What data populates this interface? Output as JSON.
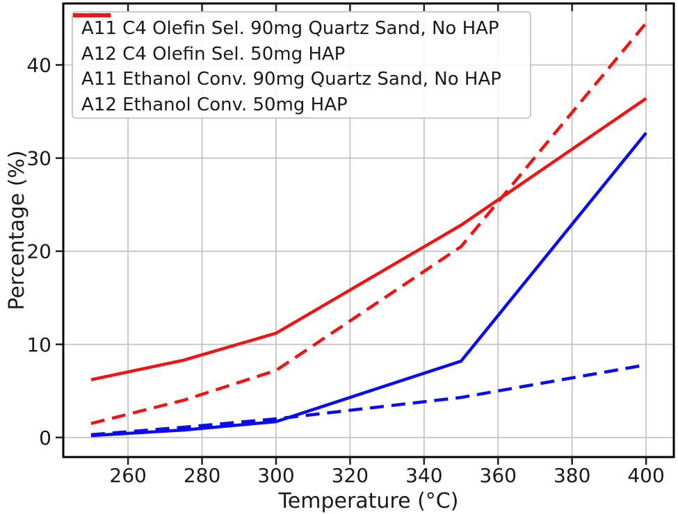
{
  "chart_data": {
    "type": "line",
    "title": "",
    "xlabel": "Temperature (°C)",
    "ylabel": "Percentage (%)",
    "x": [
      250,
      275,
      300,
      350,
      400
    ],
    "series": [
      {
        "name": "A11 C4 Olefin Sel. 90mg Quartz Sand, No HAP",
        "color": "#0b0bf0",
        "style": "dashed",
        "values": [
          0.3,
          1.1,
          2.0,
          4.3,
          7.8
        ]
      },
      {
        "name": "A12 C4 Olefin Sel. 50mg HAP",
        "color": "#f01414",
        "style": "dashed",
        "values": [
          1.5,
          4.0,
          7.2,
          20.5,
          44.5
        ]
      },
      {
        "name": "A11 Ethanol Conv. 90mg Quartz Sand, No HAP",
        "color": "#0b0bf0",
        "style": "solid",
        "values": [
          0.2,
          0.8,
          1.7,
          8.2,
          32.7
        ]
      },
      {
        "name": "A12 Ethanol Conv. 50mg HAP",
        "color": "#f01414",
        "style": "solid",
        "values": [
          6.2,
          8.3,
          11.2,
          22.8,
          36.4
        ]
      }
    ],
    "xticks": [
      260,
      280,
      300,
      320,
      340,
      360,
      380,
      400
    ],
    "yticks": [
      0,
      10,
      20,
      30,
      40
    ],
    "xlim": [
      242.5,
      407.5
    ],
    "ylim": [
      -2.1,
      46.6
    ],
    "grid": true,
    "legend_position": "upper left",
    "colors": {
      "grid": "#c4c4c4",
      "spine": "#000000",
      "tick": "#262626",
      "tick_label": "#1a1a1a",
      "background": "#ffffff"
    }
  }
}
